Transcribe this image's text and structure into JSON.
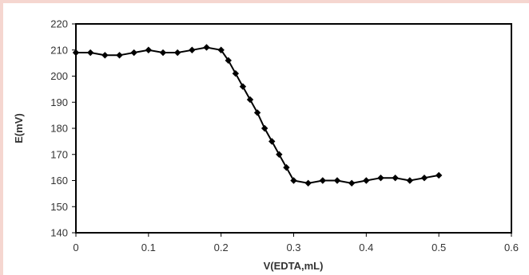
{
  "chart_data": {
    "type": "line",
    "title": "",
    "xlabel": "V(EDTA,mL)",
    "ylabel": "E(mV)",
    "xlim": [
      0,
      0.6
    ],
    "ylim": [
      140,
      220
    ],
    "xticks": [
      "0",
      "0.1",
      "0.2",
      "0.3",
      "0.4",
      "0.5",
      "0.6"
    ],
    "yticks": [
      "140",
      "150",
      "160",
      "170",
      "180",
      "190",
      "200",
      "210",
      "220"
    ],
    "grid": false,
    "legend": "none",
    "marker": "diamond",
    "series": [
      {
        "color": "#000000",
        "x": [
          0,
          0.02,
          0.04,
          0.06,
          0.08,
          0.1,
          0.12,
          0.14,
          0.16,
          0.18,
          0.2,
          0.21,
          0.22,
          0.23,
          0.24,
          0.25,
          0.26,
          0.27,
          0.28,
          0.29,
          0.3,
          0.32,
          0.34,
          0.36,
          0.38,
          0.4,
          0.42,
          0.44,
          0.46,
          0.48,
          0.5
        ],
        "y": [
          209,
          209,
          208,
          208,
          209,
          210,
          209,
          209,
          210,
          211,
          210,
          206,
          201,
          196,
          191,
          186,
          180,
          175,
          170,
          165,
          160,
          159,
          160,
          160,
          159,
          160,
          161,
          161,
          160,
          161,
          162
        ]
      }
    ]
  }
}
